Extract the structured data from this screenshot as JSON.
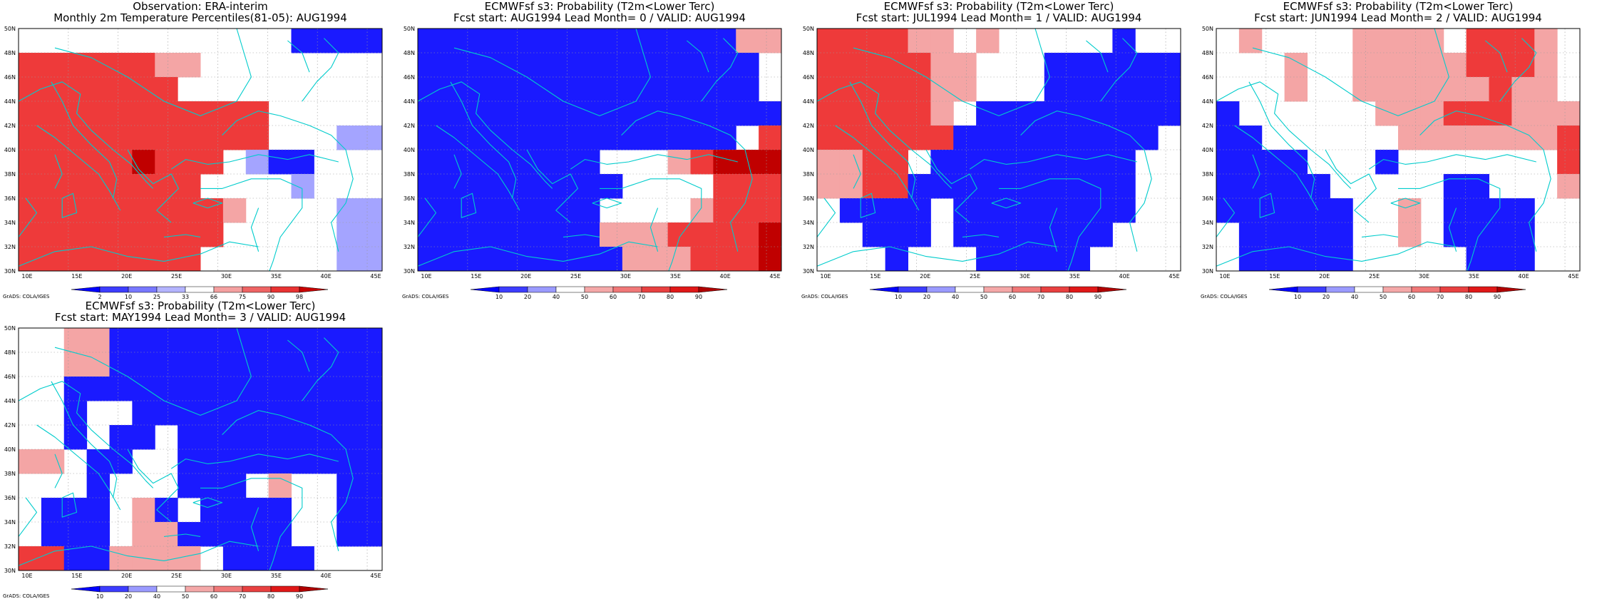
{
  "figure": {
    "panels": [
      {
        "title_line1": "Observation: ERA-interim",
        "title_line2": "Monthly 2m Temperature Percentiles(81-05): AUG1994",
        "colorbar": "percentile",
        "grid": [
          "WWWWWWWWWWWWBBBB",
          "RRRRRRLLWWWWWWWW",
          "RRRRRRRWWWWWWWWW",
          "RRRRRRRRRRRWWWWW",
          "RRRRRRRRRRRWWWPP",
          "RRRRRDRRRWPBBWWW",
          "RRRRRRRRWWWWPWWW",
          "RRRRRRRRRLWWWWPP",
          "RRRRRRRRRWWWWWPP",
          "RRRRRRRRWWWWWWPP"
        ]
      },
      {
        "title_line1": "ECMWFsf s3: Probability (T2m<Lower Terc)",
        "title_line2": "Fcst start: AUG1994  Lead Month= 0 / VALID: AUG1994",
        "colorbar": "probability",
        "grid": [
          "BBBBBBBBBBBBBBLL",
          "BBBBBBBBBBBBBBBW",
          "BBBBBBBBBBBBBBBW",
          "BBBBBBBBBBBBBBBB",
          "BBBBBBBBBBBBBBWR",
          "BBBBBBBBWWWLRDDD",
          "BBBBBBBBBWWWWRRR",
          "BBBBBBBBWWWWLRRR",
          "BBBBBBBBLLLRRRRD",
          "BBBBBBBBBLLLRRRD"
        ]
      },
      {
        "title_line1": "ECMWFsf s3: Probability (T2m<Lower Terc)",
        "title_line2": "Fcst start: JUL1994  Lead Month= 1 / VALID: AUG1994",
        "colorbar": "probability",
        "grid": [
          "RRRRLLWLWWWWWBWW",
          "RRRRRLLWWWBBBBBB",
          "RRRRRLLWWWBBBBBB",
          "RRRRRLWBBBBBBBBB",
          "RRRRRRBBBBBBBBBW",
          "LLRRWBBBBBBBBBWW",
          "LLRRBBBBBBBBBBWW",
          "WBBBBWBBBBBBBBWW",
          "WWBBBWBBBBBBBWWW",
          "WWWBWWWBBBBBWWWW"
        ]
      },
      {
        "title_line1": "ECMWFsf s3: Probability (T2m<Lower Terc)",
        "title_line2": "Fcst start: JUN1994  Lead Month= 2 / VALID: AUG1994",
        "colorbar": "probability",
        "grid": [
          "WLWWWWLLLLWRRRLW",
          "WWWLWWLLLLLRRRLW",
          "WWWLWWLLLLLLRLLW",
          "BWWWWWWLLLRRRLLL",
          "BBWWWWWWLLLLLLLR",
          "BBBBWWWBWWWWWWWR",
          "BBBBBWWWWWBBWWWL",
          "BBBBBBWWLWBBBBWW",
          "WBBBBBWWLWBBBBWW",
          "WBBBBBWWWWWBBBWW"
        ]
      },
      {
        "title_line1": "ECMWFsf s3: Probability (T2m<Lower Terc)",
        "title_line2": "Fcst start: MAY1994  Lead Month= 3 / VALID: AUG1994",
        "colorbar": "probability",
        "grid": [
          "WWLLBBBBBBBBBBBB",
          "WWLLBBBBBBBBBBBB",
          "WWBBBBBBBBBBBBBB",
          "WWBWWBBBBBBBBBBB",
          "WWBWBBWBBBBBBBBB",
          "LLWBBWWBBBBBBBBB",
          "WWWBWWWBBBWLWWBB",
          "WBBBWLBWBBBBWWBB",
          "WBBBWLLBBBBBWWBB",
          "RRBBLLLLWBBBBWWW"
        ]
      }
    ],
    "lat_labels": [
      "50N",
      "48N",
      "46N",
      "44N",
      "42N",
      "40N",
      "38N",
      "36N",
      "34N",
      "32N",
      "30N"
    ],
    "lon_labels": [
      "10E",
      "15E",
      "20E",
      "25E",
      "30E",
      "35E",
      "40E",
      "45E"
    ],
    "colorbars": {
      "percentile": {
        "labels": [
          "2",
          "10",
          "25",
          "33",
          "66",
          "75",
          "90",
          "98"
        ],
        "colors": [
          "#0000ff",
          "#3c3cff",
          "#7878ff",
          "#b4b4ff",
          "#ffffff",
          "#f4a0a0",
          "#ee6464",
          "#e83232",
          "#c80000"
        ]
      },
      "probability": {
        "labels": [
          "10",
          "20",
          "40",
          "50",
          "60",
          "70",
          "80",
          "90"
        ],
        "colors": [
          "#0000ff",
          "#3c3cff",
          "#9a9aff",
          "#ffffff",
          "#f4a8a8",
          "#f07878",
          "#e84040",
          "#e01818",
          "#b00000"
        ]
      }
    },
    "cell_colors": {
      "B": "#1a1aff",
      "P": "#a4a4ff",
      "W": "#ffffff",
      "L": "#f4a5a5",
      "R": "#ee3a3a",
      "D": "#c00000"
    },
    "coast_color": "#00cccc",
    "credit": "GrADS: COLA/IGES"
  }
}
